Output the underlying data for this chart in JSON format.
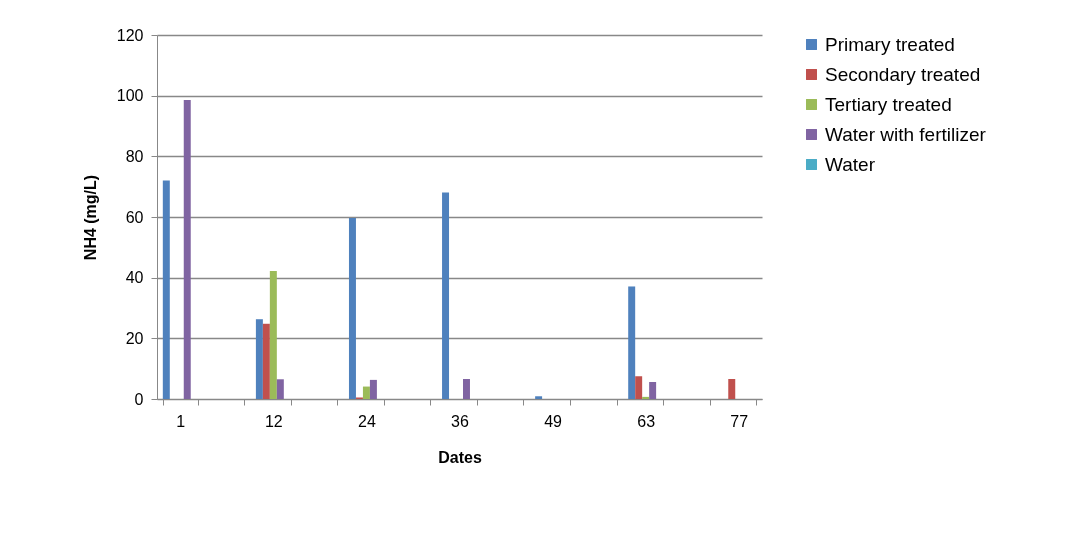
{
  "chart_data": {
    "type": "bar",
    "xlabel": "Dates",
    "ylabel": "NH4 (mg/L)",
    "categories": [
      "1",
      null,
      "12",
      null,
      "24",
      null,
      "36",
      null,
      "49",
      null,
      "63",
      null,
      "77"
    ],
    "series": [
      {
        "name": "Primary treated",
        "color": "#4f81bd",
        "values": [
          72,
          0,
          26.3,
          0,
          59.7,
          0,
          68.1,
          0,
          0.9,
          0,
          37.1,
          0,
          0
        ]
      },
      {
        "name": "Secondary treated",
        "color": "#c0504d",
        "values": [
          0,
          0,
          24.8,
          0,
          0.5,
          0,
          0,
          0,
          0,
          0,
          7.5,
          0,
          6.6
        ]
      },
      {
        "name": "Tertiary treated",
        "color": "#9bbb59",
        "values": [
          0,
          0,
          42.2,
          0,
          4.1,
          0,
          0,
          0,
          0,
          0,
          0.7,
          0,
          null
        ]
      },
      {
        "name": "Water with fertilizer",
        "color": "#8064a2",
        "values": [
          98.6,
          0,
          6.5,
          0,
          6.3,
          0,
          6.6,
          0,
          0,
          0,
          5.6,
          0,
          0
        ]
      },
      {
        "name": "Water",
        "color": "#4bacc6",
        "values": [
          0,
          0,
          0,
          0,
          0,
          0,
          0,
          0,
          0,
          0,
          0,
          0,
          0
        ]
      }
    ],
    "ylim": [
      0,
      120
    ],
    "yticks": [
      0,
      20,
      40,
      60,
      80,
      100,
      120
    ],
    "grid": "y",
    "legend": "right"
  }
}
